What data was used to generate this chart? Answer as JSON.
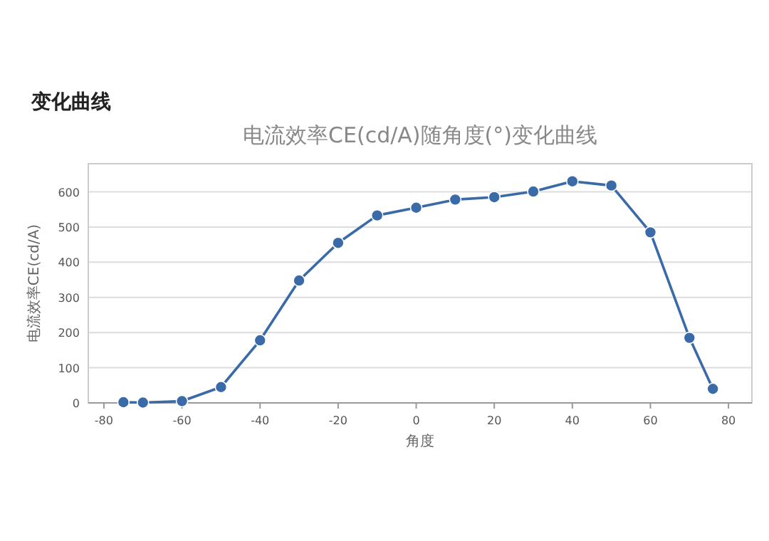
{
  "chart_data": {
    "type": "line",
    "title": "变化曲线",
    "subtitle": "电流效率CE(cd/A)随角度(°)变化曲线",
    "xlabel": "角度",
    "ylabel": "电流效率CE(cd/A)",
    "x": [
      -75,
      -70,
      -60,
      -50,
      -40,
      -30,
      -20,
      -10,
      0,
      10,
      20,
      30,
      40,
      50,
      60,
      70,
      76
    ],
    "series": [
      {
        "color": "#3a6aa8",
        "values": [
          2,
          1,
          5,
          45,
          178,
          348,
          455,
          533,
          555,
          578,
          585,
          601,
          630,
          618,
          485,
          185,
          40
        ]
      }
    ],
    "xlim": [
      -84,
      86
    ],
    "xticks": [
      -80,
      -60,
      -40,
      -20,
      0,
      20,
      40,
      60,
      80
    ],
    "ylim": [
      0,
      680
    ],
    "yticks": [
      0,
      100,
      200,
      300,
      400,
      500,
      600
    ],
    "grid": "y",
    "marker": "circle",
    "line_style": "solid"
  }
}
